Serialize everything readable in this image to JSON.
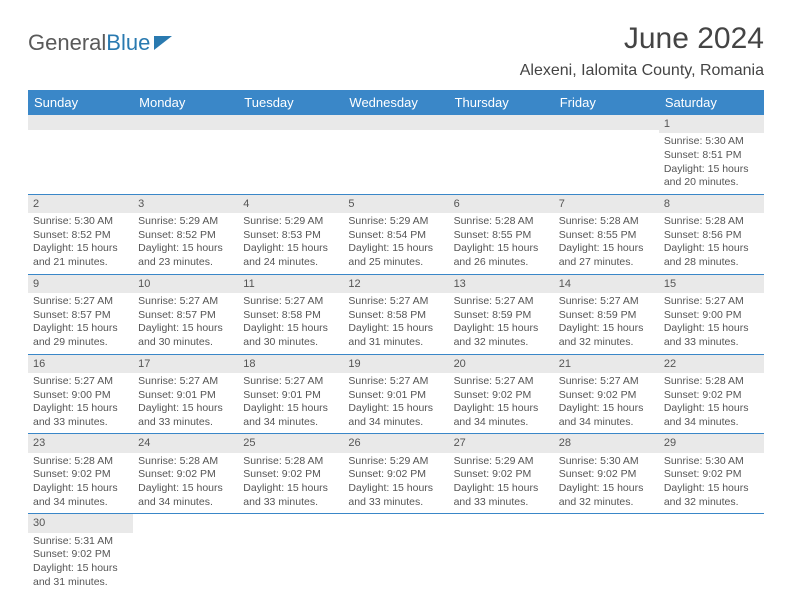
{
  "brand": {
    "name_part1": "General",
    "name_part2": "Blue"
  },
  "title": "June 2024",
  "location": "Alexeni, Ialomita County, Romania",
  "colors": {
    "header_bg": "#3a87c8",
    "header_text": "#ffffff",
    "grid_line": "#3a87c8",
    "daynum_bg": "#e9e9e9",
    "body_text": "#555555",
    "title_text": "#444444",
    "logo_gray": "#5a5a5a",
    "logo_blue": "#2a7ab0",
    "page_bg": "#ffffff"
  },
  "typography": {
    "title_fontsize": 30,
    "location_fontsize": 16,
    "header_fontsize": 13,
    "cell_fontsize": 10.5,
    "logo_fontsize": 22
  },
  "day_headers": [
    "Sunday",
    "Monday",
    "Tuesday",
    "Wednesday",
    "Thursday",
    "Friday",
    "Saturday"
  ],
  "weeks": [
    [
      {
        "empty": true
      },
      {
        "empty": true
      },
      {
        "empty": true
      },
      {
        "empty": true
      },
      {
        "empty": true
      },
      {
        "empty": true
      },
      {
        "day": "1",
        "sunrise": "Sunrise: 5:30 AM",
        "sunset": "Sunset: 8:51 PM",
        "daylight": "Daylight: 15 hours and 20 minutes."
      }
    ],
    [
      {
        "day": "2",
        "sunrise": "Sunrise: 5:30 AM",
        "sunset": "Sunset: 8:52 PM",
        "daylight": "Daylight: 15 hours and 21 minutes."
      },
      {
        "day": "3",
        "sunrise": "Sunrise: 5:29 AM",
        "sunset": "Sunset: 8:52 PM",
        "daylight": "Daylight: 15 hours and 23 minutes."
      },
      {
        "day": "4",
        "sunrise": "Sunrise: 5:29 AM",
        "sunset": "Sunset: 8:53 PM",
        "daylight": "Daylight: 15 hours and 24 minutes."
      },
      {
        "day": "5",
        "sunrise": "Sunrise: 5:29 AM",
        "sunset": "Sunset: 8:54 PM",
        "daylight": "Daylight: 15 hours and 25 minutes."
      },
      {
        "day": "6",
        "sunrise": "Sunrise: 5:28 AM",
        "sunset": "Sunset: 8:55 PM",
        "daylight": "Daylight: 15 hours and 26 minutes."
      },
      {
        "day": "7",
        "sunrise": "Sunrise: 5:28 AM",
        "sunset": "Sunset: 8:55 PM",
        "daylight": "Daylight: 15 hours and 27 minutes."
      },
      {
        "day": "8",
        "sunrise": "Sunrise: 5:28 AM",
        "sunset": "Sunset: 8:56 PM",
        "daylight": "Daylight: 15 hours and 28 minutes."
      }
    ],
    [
      {
        "day": "9",
        "sunrise": "Sunrise: 5:27 AM",
        "sunset": "Sunset: 8:57 PM",
        "daylight": "Daylight: 15 hours and 29 minutes."
      },
      {
        "day": "10",
        "sunrise": "Sunrise: 5:27 AM",
        "sunset": "Sunset: 8:57 PM",
        "daylight": "Daylight: 15 hours and 30 minutes."
      },
      {
        "day": "11",
        "sunrise": "Sunrise: 5:27 AM",
        "sunset": "Sunset: 8:58 PM",
        "daylight": "Daylight: 15 hours and 30 minutes."
      },
      {
        "day": "12",
        "sunrise": "Sunrise: 5:27 AM",
        "sunset": "Sunset: 8:58 PM",
        "daylight": "Daylight: 15 hours and 31 minutes."
      },
      {
        "day": "13",
        "sunrise": "Sunrise: 5:27 AM",
        "sunset": "Sunset: 8:59 PM",
        "daylight": "Daylight: 15 hours and 32 minutes."
      },
      {
        "day": "14",
        "sunrise": "Sunrise: 5:27 AM",
        "sunset": "Sunset: 8:59 PM",
        "daylight": "Daylight: 15 hours and 32 minutes."
      },
      {
        "day": "15",
        "sunrise": "Sunrise: 5:27 AM",
        "sunset": "Sunset: 9:00 PM",
        "daylight": "Daylight: 15 hours and 33 minutes."
      }
    ],
    [
      {
        "day": "16",
        "sunrise": "Sunrise: 5:27 AM",
        "sunset": "Sunset: 9:00 PM",
        "daylight": "Daylight: 15 hours and 33 minutes."
      },
      {
        "day": "17",
        "sunrise": "Sunrise: 5:27 AM",
        "sunset": "Sunset: 9:01 PM",
        "daylight": "Daylight: 15 hours and 33 minutes."
      },
      {
        "day": "18",
        "sunrise": "Sunrise: 5:27 AM",
        "sunset": "Sunset: 9:01 PM",
        "daylight": "Daylight: 15 hours and 34 minutes."
      },
      {
        "day": "19",
        "sunrise": "Sunrise: 5:27 AM",
        "sunset": "Sunset: 9:01 PM",
        "daylight": "Daylight: 15 hours and 34 minutes."
      },
      {
        "day": "20",
        "sunrise": "Sunrise: 5:27 AM",
        "sunset": "Sunset: 9:02 PM",
        "daylight": "Daylight: 15 hours and 34 minutes."
      },
      {
        "day": "21",
        "sunrise": "Sunrise: 5:27 AM",
        "sunset": "Sunset: 9:02 PM",
        "daylight": "Daylight: 15 hours and 34 minutes."
      },
      {
        "day": "22",
        "sunrise": "Sunrise: 5:28 AM",
        "sunset": "Sunset: 9:02 PM",
        "daylight": "Daylight: 15 hours and 34 minutes."
      }
    ],
    [
      {
        "day": "23",
        "sunrise": "Sunrise: 5:28 AM",
        "sunset": "Sunset: 9:02 PM",
        "daylight": "Daylight: 15 hours and 34 minutes."
      },
      {
        "day": "24",
        "sunrise": "Sunrise: 5:28 AM",
        "sunset": "Sunset: 9:02 PM",
        "daylight": "Daylight: 15 hours and 34 minutes."
      },
      {
        "day": "25",
        "sunrise": "Sunrise: 5:28 AM",
        "sunset": "Sunset: 9:02 PM",
        "daylight": "Daylight: 15 hours and 33 minutes."
      },
      {
        "day": "26",
        "sunrise": "Sunrise: 5:29 AM",
        "sunset": "Sunset: 9:02 PM",
        "daylight": "Daylight: 15 hours and 33 minutes."
      },
      {
        "day": "27",
        "sunrise": "Sunrise: 5:29 AM",
        "sunset": "Sunset: 9:02 PM",
        "daylight": "Daylight: 15 hours and 33 minutes."
      },
      {
        "day": "28",
        "sunrise": "Sunrise: 5:30 AM",
        "sunset": "Sunset: 9:02 PM",
        "daylight": "Daylight: 15 hours and 32 minutes."
      },
      {
        "day": "29",
        "sunrise": "Sunrise: 5:30 AM",
        "sunset": "Sunset: 9:02 PM",
        "daylight": "Daylight: 15 hours and 32 minutes."
      }
    ],
    [
      {
        "day": "30",
        "sunrise": "Sunrise: 5:31 AM",
        "sunset": "Sunset: 9:02 PM",
        "daylight": "Daylight: 15 hours and 31 minutes."
      },
      {
        "empty": true
      },
      {
        "empty": true
      },
      {
        "empty": true
      },
      {
        "empty": true
      },
      {
        "empty": true
      },
      {
        "empty": true
      }
    ]
  ]
}
